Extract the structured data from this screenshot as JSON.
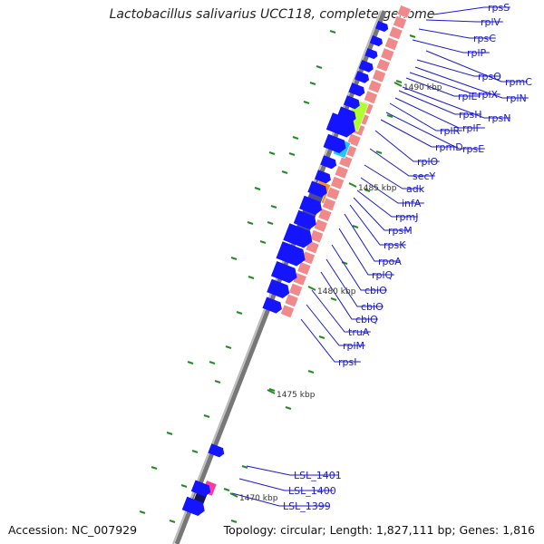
{
  "title": "Lactobacillus salivarius UCC118, complete genome",
  "accession": "Accession: NC_007929",
  "topology": "Topology: circular; Length: 1,827,111 bp; Genes: 1,816",
  "colors": {
    "backbone": "#8c8c8c",
    "cds": "#1414ff",
    "rrna_block": "#f08a8a",
    "gc_tick": "#228b22",
    "label": "#1a1acc",
    "lime": "#b0ff30",
    "cyan": "#20c8ff",
    "orange": "#ff8c1a",
    "slate": "#4a4a9c",
    "magenta": "#ff3a9a",
    "navy": "#14145a"
  },
  "kbp_marks": [
    "1490 kbp",
    "1485 kbp",
    "1480 kbp",
    "1475 kbp",
    "1470 kbp"
  ],
  "gene_labels": [
    "rpsS",
    "rplV",
    "rpsC",
    "rplP",
    "rpmC",
    "rpsQ",
    "rplN",
    "rplX",
    "rplE",
    "rpsN",
    "rpsH",
    "rplF",
    "rplR",
    "rpsE",
    "rpmD",
    "rplO",
    "secY",
    "adk",
    "infA",
    "rpmJ",
    "rpsM",
    "rpsK",
    "rpoA",
    "rplQ",
    "cbiO",
    "cbiO",
    "cbiQ",
    "truA",
    "rplM",
    "rpsI",
    "LSL_1401",
    "LSL_1400",
    "LSL_1399"
  ]
}
